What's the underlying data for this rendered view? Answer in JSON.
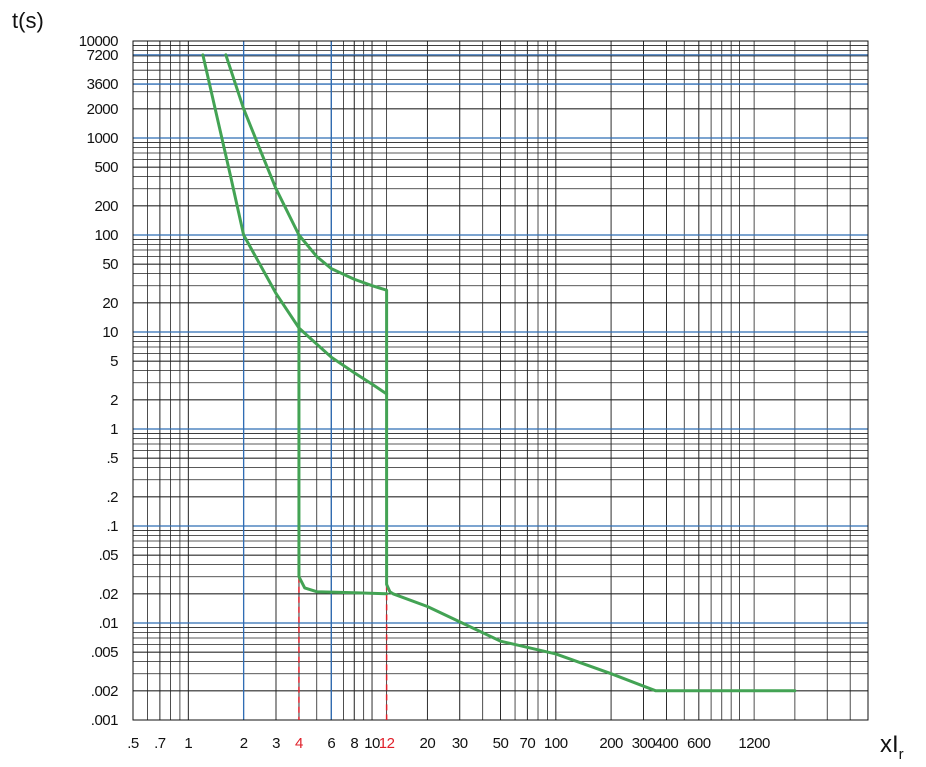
{
  "chart_data": {
    "type": "line",
    "ylabel": "t(s)",
    "xlabel": "xI",
    "xlabel_sub": "r",
    "xscale": "log",
    "yscale": "log",
    "xlim": [
      0.5,
      5000
    ],
    "ylim": [
      0.001,
      10000
    ],
    "xticks": [
      {
        "value": 0.5,
        "label": ".5"
      },
      {
        "value": 0.7,
        "label": ".7"
      },
      1,
      2,
      3,
      4,
      6,
      8,
      10,
      12,
      20,
      30,
      50,
      70,
      100,
      200,
      300,
      400,
      600,
      1200
    ],
    "yticks": [
      10000,
      7200,
      3600,
      2000,
      1000,
      500,
      200,
      100,
      50,
      20,
      10,
      5,
      2,
      1,
      {
        "value": 0.5,
        "label": ".5"
      },
      {
        "value": 0.2,
        "label": ".2"
      },
      {
        "value": 0.1,
        "label": ".1"
      },
      {
        "value": 0.05,
        "label": ".05"
      },
      {
        "value": 0.02,
        "label": ".02"
      },
      {
        "value": 0.01,
        "label": ".01"
      },
      {
        "value": 0.005,
        "label": ".005"
      },
      {
        "value": 0.002,
        "label": ".002"
      },
      {
        "value": 0.001,
        "label": ".001"
      }
    ],
    "grid": true,
    "grid_color": "#222222",
    "accent_color": "#2f6db5",
    "accent_xlines": [
      2,
      6
    ],
    "accent_ylines": [
      7200,
      3600,
      1000,
      100,
      10,
      1,
      0.1,
      0.01
    ],
    "highlight_color": "#e0202a",
    "markers": [
      {
        "x": 4,
        "from": 0.03
      },
      {
        "x": 12,
        "from": 0.025
      }
    ],
    "series": [
      {
        "color": "#43a354",
        "x": [
          1.6,
          2,
          2.5,
          3,
          4,
          5,
          6,
          8,
          10,
          12,
          12,
          12.5,
          13,
          20,
          50,
          100,
          200,
          350,
          2000
        ],
        "values": [
          7200,
          2000,
          700,
          300,
          100,
          60,
          45,
          35,
          30,
          27,
          0.025,
          0.021,
          0.02,
          0.0148,
          0.0065,
          0.0048,
          0.003,
          0.002,
          0.002
        ]
      },
      {
        "color": "#43a354",
        "x": [
          1.2,
          1.4,
          1.7,
          2,
          3,
          4,
          5,
          6,
          8,
          10,
          12
        ],
        "values": [
          7200,
          2000,
          400,
          100,
          25,
          11,
          7.5,
          5.5,
          3.8,
          2.9,
          2.3
        ]
      },
      {
        "color": "#43a354",
        "x": [
          4,
          4,
          4.3,
          5,
          8,
          12
        ],
        "values": [
          100,
          0.03,
          0.023,
          0.021,
          0.0205,
          0.02
        ]
      }
    ]
  }
}
